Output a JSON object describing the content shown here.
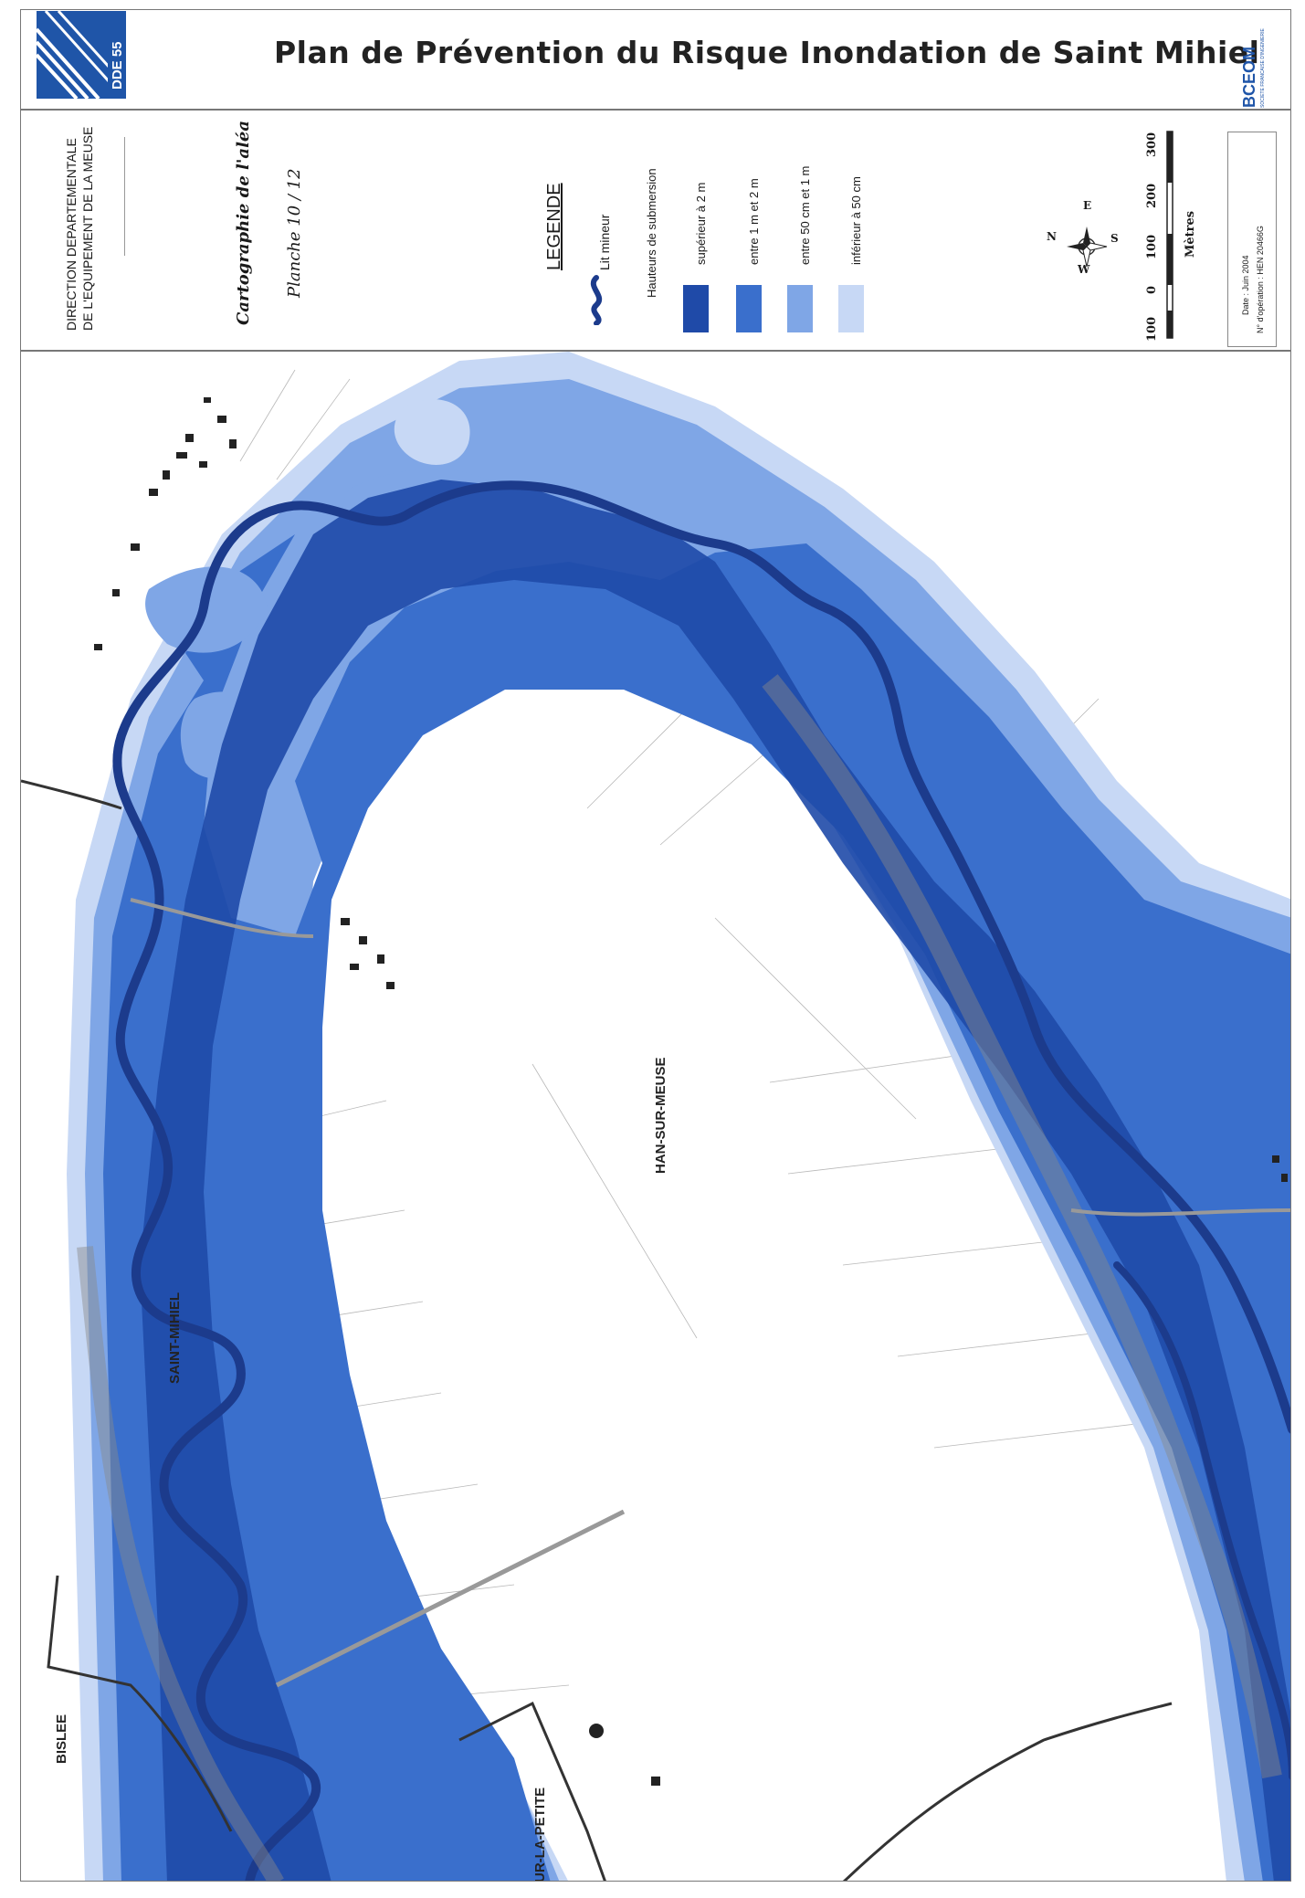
{
  "header": {
    "title": "Plan de Prévention du Risque Inondation de Saint Mihiel",
    "logo_left": "DDE 55",
    "logo_right": "BCEOM",
    "logo_right_sub": "SOCIETE FRANCAISE D'INGENIERIE"
  },
  "cartouche": {
    "org_line1": "DIRECTION DEPARTEMENTALE",
    "org_line2": "DE L'EQUIPEMENT DE LA MEUSE",
    "map_type": "Cartographie de l'aléa",
    "sheet": "Planche 10 / 12",
    "date": "Date : Juin 2004",
    "operation": "N° d'opération : HEN 20466G"
  },
  "legend": {
    "title": "LEGENDE",
    "river_label": "Lit mineur",
    "heights_title": "Hauteurs de submersion",
    "classes": [
      {
        "label": "supérieur à 2 m",
        "color": "#1f4aa8"
      },
      {
        "label": "entre 1 m et 2 m",
        "color": "#3a6fcc"
      },
      {
        "label": "entre 50 cm et 1 m",
        "color": "#7fa6e6"
      },
      {
        "label": "inférieur à 50 cm",
        "color": "#c7d8f5"
      }
    ],
    "river_color": "#1c3b8c"
  },
  "compass": {
    "n": "N",
    "e": "E",
    "s": "S",
    "w": "W"
  },
  "scale": {
    "ticks": [
      "100",
      "0",
      "100",
      "200",
      "300"
    ],
    "unit": "Mètres"
  },
  "map": {
    "labels": {
      "saint_mihiel": "SAINT-MIHIEL",
      "han_sur_meuse": "HAN-SUR-MEUSE",
      "bislee": "BISLEE",
      "ur_la_petite": "UR-LA-PETITE"
    }
  }
}
